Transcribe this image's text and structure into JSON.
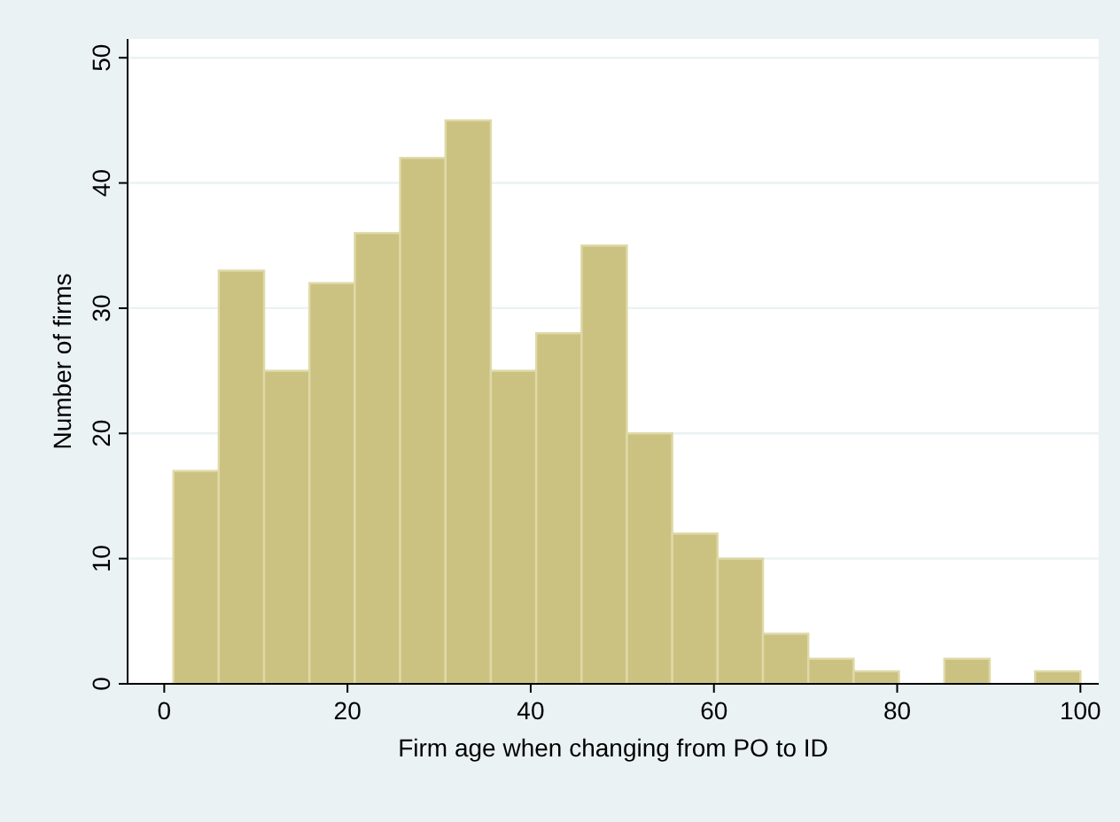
{
  "chart_data": {
    "type": "histogram",
    "xlabel": "Firm age when changing from PO to ID",
    "ylabel": "Number of firms",
    "bins": [
      1,
      5.95,
      10.9,
      15.85,
      20.8,
      25.75,
      30.7,
      35.65,
      40.6,
      45.55,
      50.5,
      55.45,
      60.4,
      65.35,
      70.3,
      75.25,
      80.2,
      85.15,
      90.1,
      95.05,
      100
    ],
    "values": [
      17,
      33,
      25,
      32,
      36,
      42,
      45,
      25,
      28,
      35,
      20,
      12,
      10,
      4,
      2,
      1,
      0,
      2,
      0,
      1
    ],
    "color": "#cbc282",
    "xlim": [
      -4,
      102
    ],
    "xticks": [
      0,
      20,
      40,
      60,
      80,
      100
    ],
    "ylim": [
      0,
      51.5
    ],
    "yticks": [
      0,
      10,
      20,
      30,
      40,
      50
    ],
    "grid": "y"
  }
}
